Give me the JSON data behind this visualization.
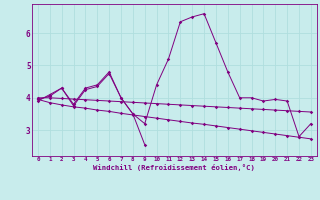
{
  "x": [
    0,
    1,
    2,
    3,
    4,
    5,
    6,
    7,
    8,
    9,
    10,
    11,
    12,
    13,
    14,
    15,
    16,
    17,
    18,
    19,
    20,
    21,
    22,
    23
  ],
  "line1": [
    3.9,
    4.1,
    4.3,
    3.8,
    4.3,
    4.4,
    4.8,
    4.0,
    3.5,
    3.2,
    4.4,
    5.2,
    6.35,
    6.5,
    6.6,
    5.7,
    4.8,
    4.0,
    4.0,
    3.9,
    3.95,
    3.9,
    2.8,
    3.2
  ],
  "line2": [
    3.95,
    4.05,
    4.3,
    3.75,
    4.25,
    4.35,
    4.75,
    4.0,
    3.5,
    2.55,
    null,
    null,
    null,
    null,
    null,
    null,
    null,
    null,
    null,
    null,
    null,
    null,
    null,
    null
  ],
  "line3": [
    3.95,
    3.85,
    3.78,
    3.72,
    3.68,
    3.62,
    3.58,
    3.52,
    3.47,
    3.42,
    3.37,
    3.32,
    3.27,
    3.22,
    3.18,
    3.13,
    3.08,
    3.03,
    2.98,
    2.93,
    2.88,
    2.83,
    2.78,
    2.73
  ],
  "line4": [
    4.0,
    4.0,
    3.98,
    3.96,
    3.94,
    3.92,
    3.9,
    3.88,
    3.86,
    3.84,
    3.82,
    3.8,
    3.78,
    3.76,
    3.74,
    3.72,
    3.7,
    3.68,
    3.66,
    3.64,
    3.62,
    3.6,
    3.58,
    3.56
  ],
  "color": "#800080",
  "bg_color": "#c8ecec",
  "grid_color": "#b0dede",
  "xlabel": "Windchill (Refroidissement éolien,°C)",
  "ylim": [
    2.2,
    6.9
  ],
  "xlim": [
    -0.5,
    23.5
  ]
}
